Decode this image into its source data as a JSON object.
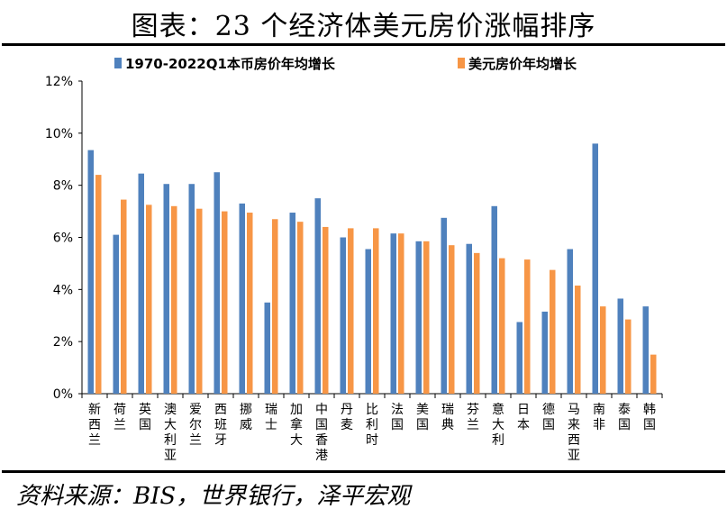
{
  "title": "图表：23 个经济体美元房价涨幅排序",
  "source": "资料来源：BIS，世界银行，泽平宏观",
  "chart_data": {
    "type": "bar",
    "categories": [
      "新西兰",
      "荷兰",
      "英国",
      "澳大利亚",
      "爱尔兰",
      "西班牙",
      "挪威",
      "瑞士",
      "加拿大",
      "中国香港",
      "丹麦",
      "比利时",
      "法国",
      "美国",
      "瑞典",
      "芬兰",
      "意大利",
      "日本",
      "德国",
      "马来西亚",
      "南非",
      "泰国",
      "韩国"
    ],
    "series": [
      {
        "name": "1970-2022Q1本币房价年均增长",
        "color": "#4F81BD",
        "values": [
          9.35,
          6.1,
          8.45,
          8.05,
          8.05,
          8.5,
          7.3,
          3.5,
          6.95,
          7.5,
          6.0,
          5.55,
          6.15,
          5.85,
          6.75,
          5.75,
          7.2,
          2.75,
          3.15,
          5.55,
          9.6,
          3.65,
          3.35
        ]
      },
      {
        "name": "美元房价年均增长",
        "color": "#F79646",
        "values": [
          8.4,
          7.45,
          7.25,
          7.2,
          7.1,
          7.0,
          6.95,
          6.7,
          6.6,
          6.4,
          6.35,
          6.35,
          6.15,
          5.85,
          5.7,
          5.4,
          5.2,
          5.15,
          4.75,
          4.15,
          3.35,
          2.85,
          1.5
        ]
      }
    ],
    "yticks": [
      "0%",
      "2%",
      "4%",
      "6%",
      "8%",
      "10%",
      "12%"
    ],
    "ylim": [
      0,
      12
    ],
    "legend": "top",
    "grid": false
  }
}
